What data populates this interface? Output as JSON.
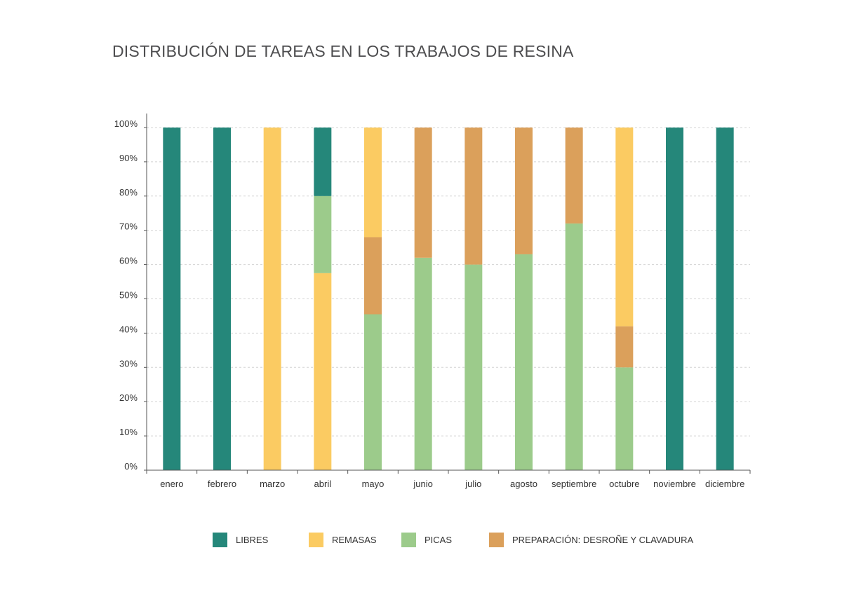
{
  "title": "DISTRIBUCIÓN DE TAREAS EN LOS TRABAJOS DE RESINA",
  "colors": {
    "libres": "#25877a",
    "remasas": "#fbcb62",
    "picas": "#9ccb8b",
    "preparacion": "#dba05b",
    "axis": "#555555",
    "grid": "#d4d4d4"
  },
  "chart_data": {
    "type": "bar",
    "stacked": true,
    "title": "DISTRIBUCIÓN DE TAREAS EN LOS TRABAJOS DE RESINA",
    "xlabel": "",
    "ylabel": "",
    "ylim": [
      0,
      100
    ],
    "yticks": [
      "0%",
      "10%",
      "20%",
      "30%",
      "40%",
      "50%",
      "60%",
      "70%",
      "80%",
      "90%",
      "100%"
    ],
    "grid": true,
    "legend_position": "bottom",
    "categories": [
      "enero",
      "febrero",
      "marzo",
      "abril",
      "mayo",
      "junio",
      "julio",
      "agosto",
      "septiembre",
      "octubre",
      "noviembre",
      "diciembre"
    ],
    "series": [
      {
        "name": "PICAS",
        "color": "#9ccb8b",
        "values": [
          0,
          0,
          0,
          0,
          45.5,
          62,
          60,
          63,
          72,
          30,
          0,
          0
        ]
      },
      {
        "name": "PREPARACIÓN: DESROÑE Y CLAVADURA",
        "color": "#dba05b",
        "values": [
          0,
          0,
          0,
          0,
          22.5,
          38,
          40,
          37,
          28,
          12,
          0,
          0
        ]
      },
      {
        "name": "REMASAS",
        "color": "#fbcb62",
        "values": [
          0,
          0,
          100,
          57.5,
          32,
          0,
          0,
          0,
          0,
          58,
          0,
          0
        ]
      },
      {
        "name": "PICAS",
        "color": "#9ccb8b",
        "values": [
          0,
          0,
          0,
          22.5,
          0,
          0,
          0,
          0,
          0,
          0,
          0,
          0
        ]
      },
      {
        "name": "LIBRES",
        "color": "#25877a",
        "values": [
          100,
          100,
          0,
          20,
          0,
          0,
          0,
          0,
          0,
          0,
          100,
          100
        ]
      }
    ]
  },
  "legend": [
    {
      "label": "LIBRES",
      "color": "#25877a"
    },
    {
      "label": "REMASAS",
      "color": "#fbcb62"
    },
    {
      "label": "PICAS",
      "color": "#9ccb8b"
    },
    {
      "label": "PREPARACIÓN: DESROÑE Y CLAVADURA",
      "color": "#dba05b"
    }
  ]
}
